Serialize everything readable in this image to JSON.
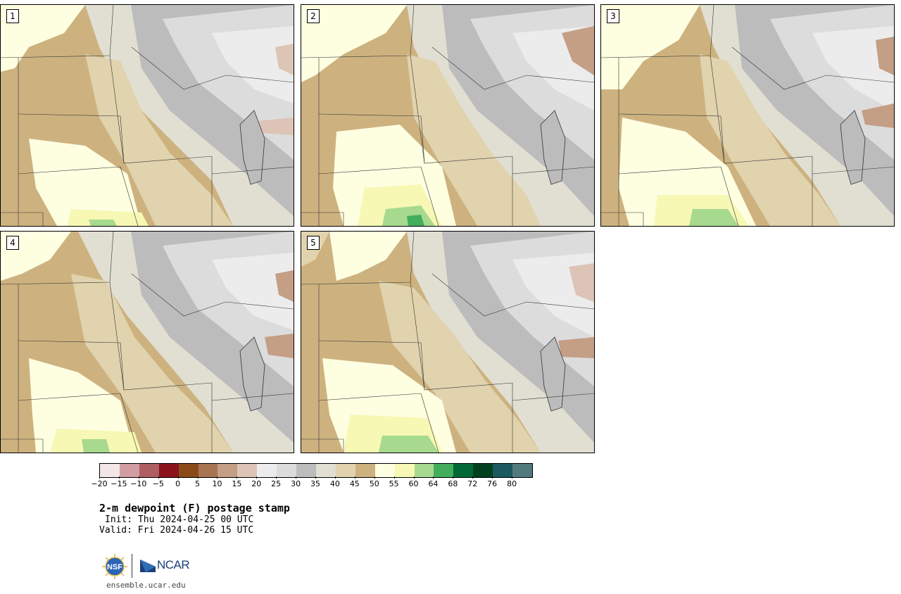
{
  "panels": [
    {
      "number": "1"
    },
    {
      "number": "2"
    },
    {
      "number": "3"
    },
    {
      "number": "4"
    },
    {
      "number": "5"
    }
  ],
  "colorbar": {
    "colors": [
      "#f2e6e6",
      "#d09ea2",
      "#ae5e62",
      "#8b131c",
      "#8a4a1a",
      "#a87553",
      "#c49e85",
      "#ddc4b6",
      "#ececec",
      "#dcdcdc",
      "#bcbcbc",
      "#e1dfd2",
      "#e0d3ad",
      "#cdb27f",
      "#fefee1",
      "#f6f8b4",
      "#a7d98f",
      "#43ad5e",
      "#006837",
      "#00401f",
      "#1b5a5e",
      "#517a7d"
    ],
    "tick_labels": [
      "−20",
      "−15",
      "−10",
      "−5",
      "0",
      "5",
      "10",
      "15",
      "20",
      "25",
      "30",
      "35",
      "40",
      "45",
      "50",
      "55",
      "60",
      "64",
      "68",
      "72",
      "76",
      "80"
    ]
  },
  "title": "2-m dewpoint (F) postage stamp",
  "init": "Init: Thu 2024-04-25 00 UTC",
  "valid": "Valid: Fri 2024-04-26 15 UTC",
  "logos": {
    "nsf": "NSF",
    "ncar": "NCAR"
  },
  "site_url": "ensemble.ucar.edu"
}
